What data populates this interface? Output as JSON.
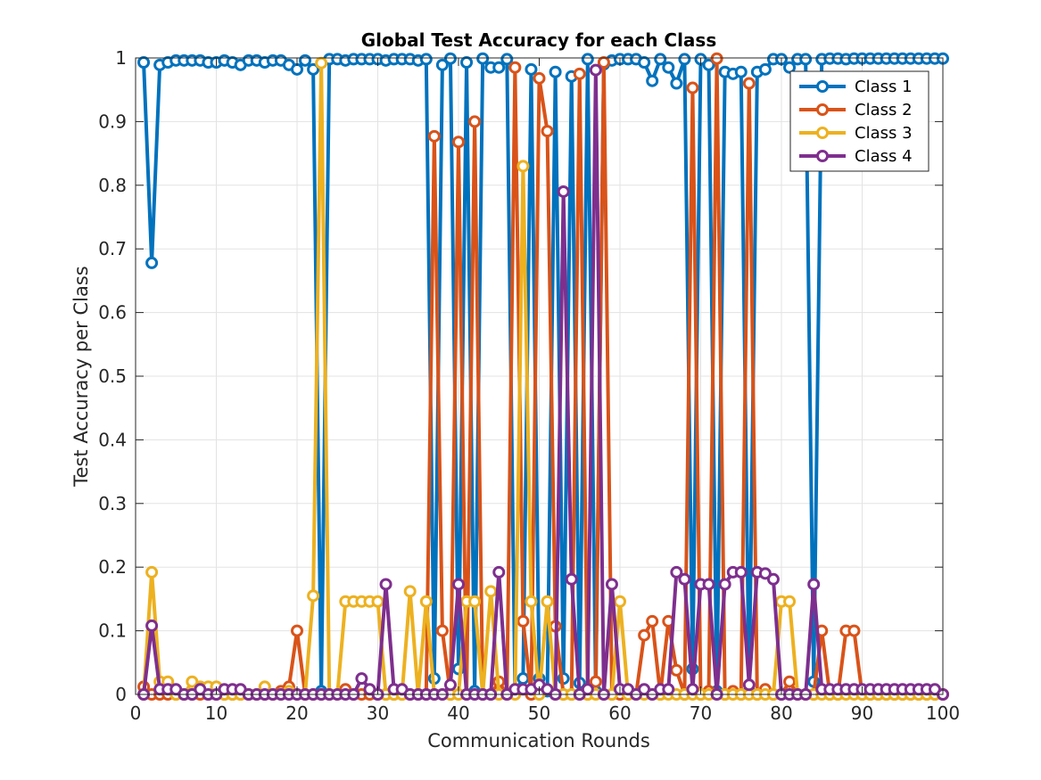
{
  "chart_data": {
    "type": "line",
    "title": "Global Test Accuracy for each Class",
    "xlabel": "Communication Rounds",
    "ylabel": "Test Accuracy per Class",
    "xlim": [
      0,
      100
    ],
    "ylim": [
      0,
      1
    ],
    "xticks": [
      "0",
      "10",
      "20",
      "30",
      "40",
      "50",
      "60",
      "70",
      "80",
      "90",
      "100"
    ],
    "yticks": [
      "0",
      "0.1",
      "0.2",
      "0.3",
      "0.4",
      "0.5",
      "0.6",
      "0.7",
      "0.8",
      "0.9",
      "1"
    ],
    "grid": true,
    "legend_position": "top-right",
    "marker": "open-circle",
    "series": [
      {
        "name": "Class 1",
        "color": "#0072BD",
        "values": [
          0.993,
          0.678,
          0.989,
          0.993,
          0.996,
          0.996,
          0.996,
          0.996,
          0.993,
          0.993,
          0.996,
          0.993,
          0.989,
          0.996,
          0.996,
          0.993,
          0.996,
          0.996,
          0.989,
          0.982,
          0.996,
          0.982,
          0.005,
          0.998,
          0.998,
          0.996,
          0.998,
          0.998,
          0.998,
          0.998,
          0.996,
          0.998,
          0.998,
          0.998,
          0.996,
          0.998,
          0.025,
          0.989,
          0.999,
          0.04,
          0.993,
          0.005,
          0.999,
          0.985,
          0.985,
          0.998,
          0.005,
          0.025,
          0.982,
          0.025,
          0.005,
          0.978,
          0.025,
          0.971,
          0.018,
          0.998,
          0.005,
          0.99,
          0.996,
          0.998,
          0.998,
          0.998,
          0.993,
          0.964,
          0.998,
          0.985,
          0.96,
          0.998,
          0.04,
          0.998,
          0.989,
          0.005,
          0.978,
          0.975,
          0.978,
          0.005,
          0.978,
          0.982,
          0.998,
          0.998,
          0.985,
          0.998,
          0.998,
          0.02,
          0.998,
          0.999,
          0.999,
          0.998,
          0.999,
          0.999,
          0.999,
          0.999,
          0.999,
          0.999,
          0.999,
          0.999,
          0.999,
          0.999,
          0.999,
          0.999
        ]
      },
      {
        "name": "Class 2",
        "color": "#D95319",
        "values": [
          0.012,
          0.0,
          0.0,
          0.0,
          0.0,
          0.0,
          0.0,
          0.0,
          0.0,
          0.0,
          0.0,
          0.0,
          0.0,
          0.0,
          0.0,
          0.0,
          0.0,
          0.005,
          0.012,
          0.1,
          0.0,
          0.0,
          0.0,
          0.0,
          0.0,
          0.008,
          0.0,
          0.0,
          0.0,
          0.0,
          0.0,
          0.0,
          0.0,
          0.0,
          0.0,
          0.0,
          0.877,
          0.1,
          0.0,
          0.868,
          0.0,
          0.9,
          0.0,
          0.0,
          0.02,
          0.0,
          0.985,
          0.115,
          0.0,
          0.968,
          0.885,
          0.107,
          0.0,
          0.0,
          0.975,
          0.0,
          0.02,
          0.993,
          0.0,
          0.0,
          0.0,
          0.0,
          0.093,
          0.115,
          0.0,
          0.115,
          0.038,
          0.0,
          0.953,
          0.0,
          0.005,
          0.999,
          0.0,
          0.005,
          0.0,
          0.96,
          0.0,
          0.008,
          0.0,
          0.0,
          0.02,
          0.0,
          0.0,
          0.0,
          0.1,
          0.0,
          0.0,
          0.1,
          0.1,
          0.0,
          0.0,
          0.0,
          0.0,
          0.0,
          0.0,
          0.0,
          0.0,
          0.0,
          0.0,
          0.0
        ]
      },
      {
        "name": "Class 3",
        "color": "#EDB120",
        "values": [
          0.0,
          0.192,
          0.02,
          0.02,
          0.0,
          0.0,
          0.02,
          0.012,
          0.012,
          0.012,
          0.0,
          0.0,
          0.0,
          0.0,
          0.0,
          0.012,
          0.0,
          0.0,
          0.005,
          0.0,
          0.0,
          0.155,
          0.992,
          0.0,
          0.0,
          0.146,
          0.146,
          0.146,
          0.146,
          0.146,
          0.0,
          0.0,
          0.0,
          0.162,
          0.0,
          0.146,
          0.0,
          0.0,
          0.0,
          0.0,
          0.146,
          0.146,
          0.0,
          0.162,
          0.0,
          0.0,
          0.0,
          0.83,
          0.146,
          0.0,
          0.146,
          0.0,
          0.0,
          0.0,
          0.0,
          0.0,
          0.0,
          0.0,
          0.0,
          0.146,
          0.0,
          0.0,
          0.0,
          0.0,
          0.0,
          0.0,
          0.0,
          0.0,
          0.0,
          0.0,
          0.0,
          0.0,
          0.0,
          0.0,
          0.0,
          0.0,
          0.0,
          0.0,
          0.0,
          0.146,
          0.146,
          0.0,
          0.0,
          0.0,
          0.0,
          0.0,
          0.0,
          0.0,
          0.0,
          0.0,
          0.0,
          0.0,
          0.0,
          0.0,
          0.0,
          0.0,
          0.0,
          0.0,
          0.0,
          0.0
        ]
      },
      {
        "name": "Class 4",
        "color": "#7E2F8E",
        "values": [
          0.0,
          0.108,
          0.008,
          0.008,
          0.008,
          0.0,
          0.0,
          0.008,
          0.0,
          0.0,
          0.008,
          0.008,
          0.008,
          0.0,
          0.0,
          0.0,
          0.0,
          0.0,
          0.0,
          0.0,
          0.0,
          0.0,
          0.0,
          0.0,
          0.0,
          0.0,
          0.0,
          0.025,
          0.008,
          0.0,
          0.173,
          0.008,
          0.008,
          0.0,
          0.0,
          0.0,
          0.0,
          0.0,
          0.015,
          0.173,
          0.0,
          0.0,
          0.0,
          0.0,
          0.192,
          0.0,
          0.008,
          0.008,
          0.008,
          0.015,
          0.008,
          0.0,
          0.79,
          0.181,
          0.0,
          0.008,
          0.981,
          0.0,
          0.173,
          0.008,
          0.008,
          0.0,
          0.008,
          0.0,
          0.008,
          0.008,
          0.192,
          0.181,
          0.008,
          0.173,
          0.173,
          0.0,
          0.173,
          0.192,
          0.192,
          0.015,
          0.192,
          0.19,
          0.181,
          0.0,
          0.0,
          0.0,
          0.0,
          0.173,
          0.008,
          0.008,
          0.008,
          0.008,
          0.008,
          0.008,
          0.008,
          0.008,
          0.008,
          0.008,
          0.008,
          0.008,
          0.008,
          0.008,
          0.008,
          0.0
        ]
      }
    ]
  }
}
